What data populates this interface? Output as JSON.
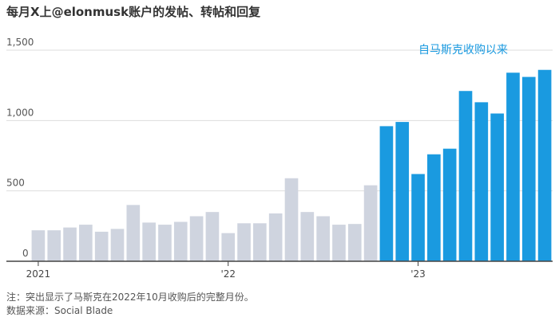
{
  "title": "每月X上@elonmusk账户的发帖、转帖和回复",
  "annotation": "自马斯克收购以来",
  "notes": {
    "note": "注：突出显示了马斯克在2022年10月收购后的完整月份。",
    "source": "数据来源：Social Blade"
  },
  "colors": {
    "before": "#cfd4df",
    "after": "#1a9ae0",
    "annotation": "#1a9ae0",
    "grid": "#dddddd",
    "axis": "#444444"
  },
  "chart_data": {
    "type": "bar",
    "title": "每月X上@elonmusk账户的发帖、转帖和回复",
    "ylim": [
      0,
      1500
    ],
    "yticks": [
      {
        "value": 0,
        "label": "0"
      },
      {
        "value": 500,
        "label": "500"
      },
      {
        "value": 1000,
        "label": "1,000"
      },
      {
        "value": 1500,
        "label": "1,500"
      }
    ],
    "xticks": [
      {
        "index": 0,
        "label": "2021"
      },
      {
        "index": 12,
        "label": "'22"
      },
      {
        "index": 24,
        "label": "'23"
      }
    ],
    "highlight_start_index": 22,
    "values": [
      220,
      220,
      240,
      260,
      210,
      230,
      400,
      275,
      260,
      280,
      320,
      350,
      200,
      270,
      270,
      340,
      590,
      350,
      320,
      260,
      265,
      540,
      960,
      990,
      620,
      760,
      800,
      1210,
      1130,
      1050,
      1340,
      1310,
      1360
    ]
  }
}
